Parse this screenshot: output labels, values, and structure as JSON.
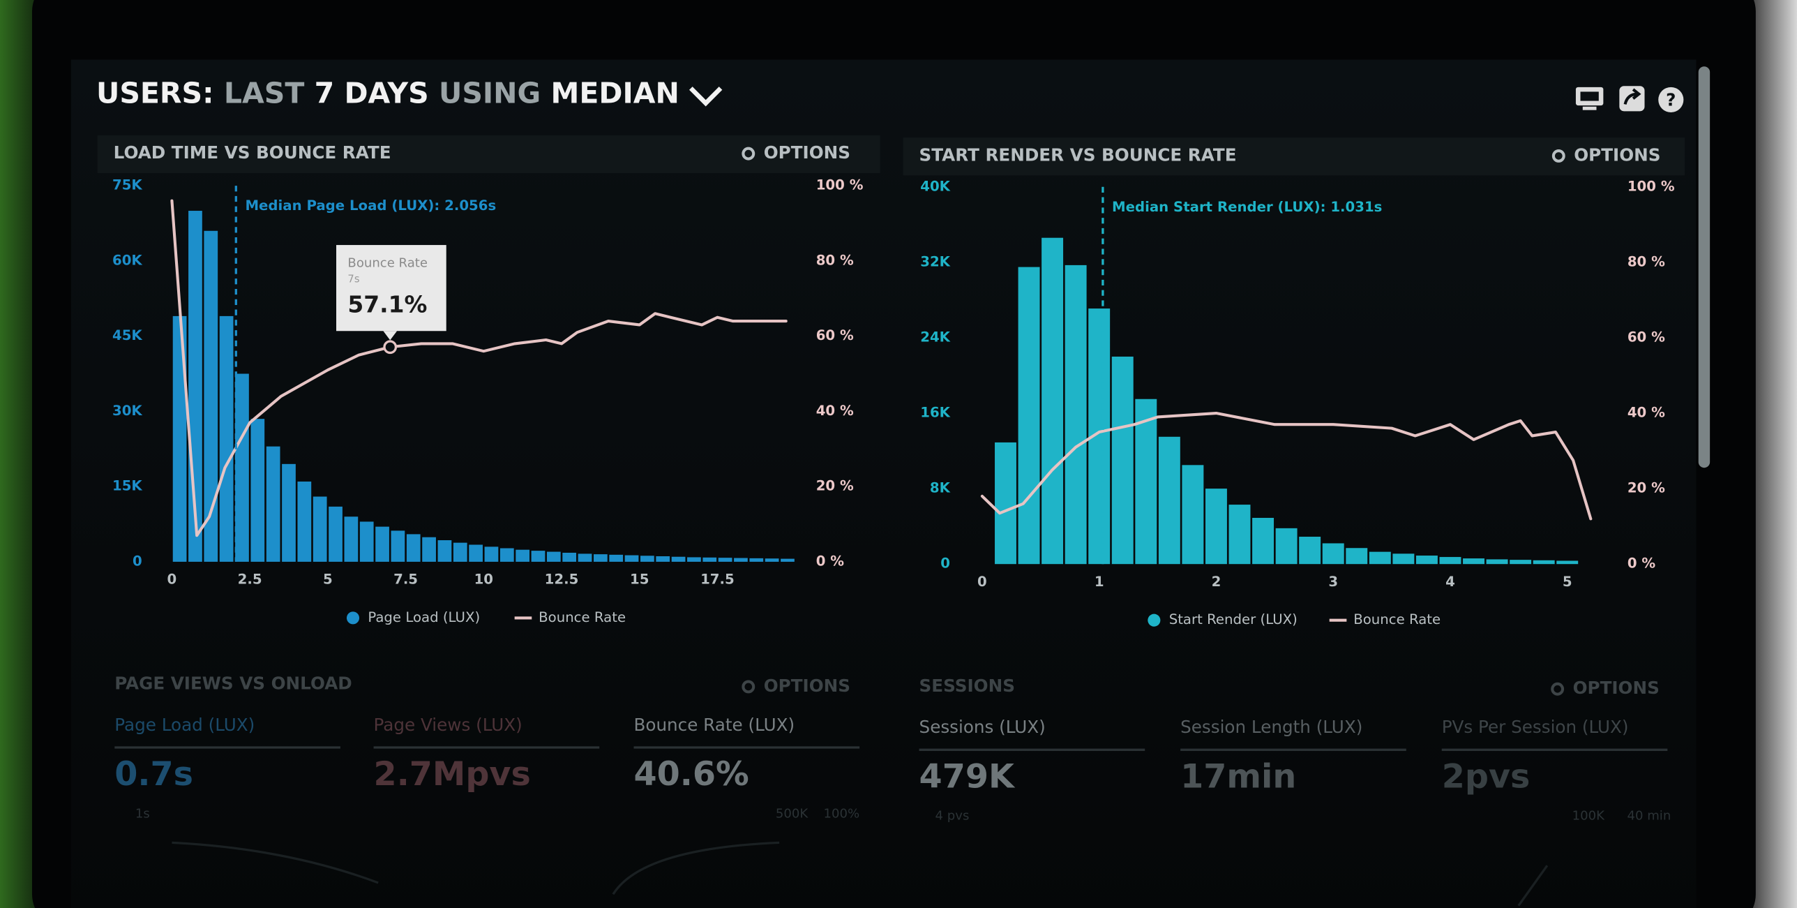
{
  "header": {
    "title_parts": [
      "USERS:",
      "LAST",
      "7 DAYS",
      "USING",
      "MEDIAN"
    ]
  },
  "chart_data": [
    {
      "type": "histogram",
      "title": "LOAD TIME VS BOUNCE RATE",
      "options_label": "OPTIONS",
      "bins": [
        0,
        0.5,
        1,
        1.5,
        2,
        2.5,
        3,
        3.5,
        4,
        4.5,
        5,
        5.5,
        6,
        6.5,
        7,
        7.5,
        8,
        8.5,
        9,
        9.5,
        10,
        10.5,
        11,
        11.5,
        12,
        12.5,
        13,
        13.5,
        14,
        14.5,
        15,
        15.5,
        16,
        16.5,
        17,
        17.5,
        18,
        18.5,
        19,
        19.5,
        20
      ],
      "series": [
        {
          "name": "Page Load (LUX)",
          "color": "#1d8fcb",
          "values": [
            49000,
            70000,
            66000,
            49000,
            37500,
            28500,
            23000,
            19500,
            16000,
            13000,
            11000,
            9000,
            8000,
            7000,
            6200,
            5500,
            4900,
            4300,
            3800,
            3400,
            3000,
            2700,
            2400,
            2200,
            2000,
            1800,
            1600,
            1500,
            1400,
            1300,
            1200,
            1100,
            1000,
            900,
            850,
            800,
            750,
            700,
            650,
            600
          ]
        },
        {
          "name": "Bounce Rate",
          "color": "#e6c4c4",
          "type": "line",
          "axis": "y2",
          "x": [
            0,
            0.5,
            0.8,
            1.2,
            1.7,
            2.5,
            3.5,
            5,
            6,
            7,
            8,
            9,
            10,
            11,
            12,
            12.5,
            13,
            14,
            15,
            15.5,
            16,
            17,
            17.5,
            18,
            19,
            19.7
          ],
          "values": [
            96,
            40,
            7,
            12,
            25,
            37,
            44,
            51,
            55,
            57.1,
            58,
            58,
            56,
            58,
            59,
            58,
            61,
            64,
            63,
            66,
            65,
            63,
            65,
            64,
            64,
            64
          ]
        }
      ],
      "xlim": [
        0,
        20
      ],
      "xticks": [
        0,
        2.5,
        5,
        7.5,
        10,
        12.5,
        15,
        17.5
      ],
      "ylim": [
        0,
        75000
      ],
      "yticks": [
        0,
        {
          "value": 15000,
          "label": "15K"
        },
        {
          "value": 30000,
          "label": "30K"
        },
        {
          "value": 45000,
          "label": "45K"
        },
        {
          "value": 60000,
          "label": "60K"
        },
        {
          "value": 75000,
          "label": "75K"
        }
      ],
      "y2lim": [
        0,
        100
      ],
      "y2ticks": [
        {
          "value": 0,
          "label": "0 %"
        },
        {
          "value": 20,
          "label": "20 %"
        },
        {
          "value": 40,
          "label": "40 %"
        },
        {
          "value": 60,
          "label": "60 %"
        },
        {
          "value": 80,
          "label": "80 %"
        },
        {
          "value": 100,
          "label": "100 %"
        }
      ],
      "annotation": {
        "x": 2.056,
        "text": "Median Page Load (LUX): 2.056s"
      },
      "tooltip": {
        "title": "Bounce Rate",
        "x": 7,
        "x_label": "7s",
        "value": 57.1,
        "value_label": "57.1%"
      }
    },
    {
      "type": "histogram",
      "title": "START RENDER VS BOUNCE RATE",
      "options_label": "OPTIONS",
      "bins": [
        0.1,
        0.3,
        0.5,
        0.7,
        0.9,
        1.1,
        1.3,
        1.5,
        1.7,
        1.9,
        2.1,
        2.3,
        2.5,
        2.7,
        2.9,
        3.1,
        3.3,
        3.5,
        3.7,
        3.9,
        4.1,
        4.3,
        4.5,
        4.7,
        4.9,
        5.1
      ],
      "series": [
        {
          "name": "Start Render (LUX)",
          "color": "#1fb4c8",
          "values": [
            12900,
            31500,
            34600,
            31700,
            27100,
            22000,
            17500,
            13500,
            10500,
            8000,
            6300,
            4900,
            3800,
            2900,
            2200,
            1700,
            1300,
            1100,
            900,
            750,
            600,
            500,
            450,
            400,
            350
          ]
        },
        {
          "name": "Bounce Rate",
          "color": "#e6c4c4",
          "type": "line",
          "axis": "y2",
          "x": [
            0,
            0.15,
            0.35,
            0.6,
            0.8,
            1,
            1.3,
            1.5,
            2,
            2.5,
            3,
            3.5,
            3.7,
            4,
            4.2,
            4.5,
            4.6,
            4.7,
            4.9,
            5.05,
            5.2
          ],
          "values": [
            18,
            13.5,
            16,
            25,
            31,
            35,
            37,
            39,
            40,
            37,
            37,
            36,
            34,
            37,
            33,
            37,
            38,
            34,
            35,
            27.5,
            12
          ]
        }
      ],
      "xlim": [
        0,
        5.2
      ],
      "xticks": [
        0,
        1,
        2,
        3,
        4,
        5
      ],
      "ylim": [
        0,
        40000
      ],
      "yticks": [
        0,
        {
          "value": 8000,
          "label": "8K"
        },
        {
          "value": 16000,
          "label": "16K"
        },
        {
          "value": 24000,
          "label": "24K"
        },
        {
          "value": 32000,
          "label": "32K"
        },
        {
          "value": 40000,
          "label": "40K"
        }
      ],
      "y2lim": [
        0,
        100
      ],
      "y2ticks": [
        {
          "value": 0,
          "label": "0 %"
        },
        {
          "value": 20,
          "label": "20 %"
        },
        {
          "value": 40,
          "label": "40 %"
        },
        {
          "value": 60,
          "label": "60 %"
        },
        {
          "value": 80,
          "label": "80 %"
        },
        {
          "value": 100,
          "label": "100 %"
        }
      ],
      "annotation": {
        "x": 1.031,
        "text": "Median Start Render (LUX): 1.031s"
      }
    }
  ],
  "panels": [
    {
      "title": "PAGE VIEWS VS ONLOAD",
      "options_label": "OPTIONS",
      "tiles": [
        {
          "label": "Page Load (LUX)",
          "value": "0.7s"
        },
        {
          "label": "Page Views (LUX)",
          "value": "2.7Mpvs"
        },
        {
          "label": "Bounce Rate (LUX)",
          "value": "40.6%"
        }
      ],
      "mini_labels": [
        "1s",
        "500K",
        "100%"
      ]
    },
    {
      "title": "SESSIONS",
      "options_label": "OPTIONS",
      "tiles": [
        {
          "label": "Sessions (LUX)",
          "value": "479K"
        },
        {
          "label": "Session Length (LUX)",
          "value": "17min"
        },
        {
          "label": "PVs Per Session (LUX)",
          "value": "2pvs"
        }
      ],
      "mini_labels": [
        "4 pvs",
        "100K",
        "40 min"
      ]
    }
  ]
}
